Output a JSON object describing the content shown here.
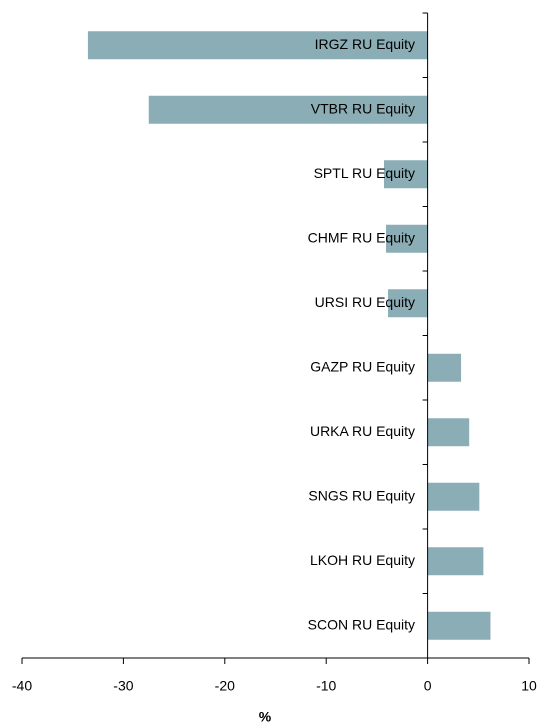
{
  "chart_data": {
    "type": "barh",
    "categories": [
      "IRGZ RU Equity",
      "VTBR RU Equity",
      "SPTL RU Equity",
      "CHMF RU Equity",
      "URSI RU Equity",
      "GAZP RU Equity",
      "URKA RU Equity",
      "SNGS RU Equity",
      "LKOH RU Equity",
      "SCON RU Equity"
    ],
    "values": [
      -33.5,
      -27.5,
      -4.3,
      -4.1,
      -3.9,
      3.3,
      4.1,
      5.1,
      5.5,
      6.2
    ],
    "color": "#8aadb6",
    "xlabel": "%",
    "xlim": [
      -40,
      10
    ],
    "xticks": [
      -40,
      -30,
      -20,
      -10,
      0,
      10
    ]
  }
}
